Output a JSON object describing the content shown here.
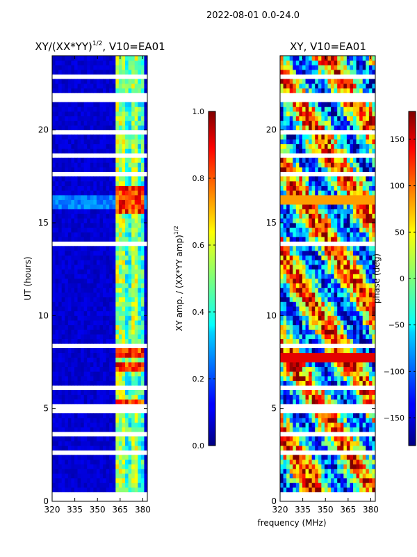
{
  "figure": {
    "suptitle": "2022-08-01 0.0-24.0",
    "shared_xlabel": "frequency (MHz)"
  },
  "chart_data": [
    {
      "type": "heatmap",
      "title": "XY/(XX*YY)",
      "title_exponent": "1/2",
      "title_suffix": ", V10=EA01",
      "xlabel": "",
      "ylabel": "UT (hours)",
      "xlim": [
        320,
        383
      ],
      "ylim": [
        0,
        24
      ],
      "xticks": [
        320,
        335,
        350,
        365,
        380
      ],
      "yticks": [
        0,
        5,
        10,
        15,
        20
      ],
      "colormap": "jet",
      "colorbar": {
        "label": "XY amp. / (XX*YY amp)",
        "label_exponent": "1/2",
        "range": [
          0.0,
          1.0
        ],
        "ticks": [
          "0.0",
          "0.2",
          "0.4",
          "0.6",
          "0.8",
          "1.0"
        ]
      },
      "flagged_hour_ranges": [
        [
          0.05,
          0.15
        ],
        [
          0.35,
          0.6
        ],
        [
          2.05,
          2.1
        ],
        [
          2.6,
          2.65
        ],
        [
          3.4,
          3.45
        ],
        [
          3.6,
          3.65
        ],
        [
          3.9,
          3.95
        ],
        [
          4.25,
          4.3
        ],
        [
          4.55,
          4.6
        ],
        [
          4.85,
          4.9
        ],
        [
          5.1,
          5.15
        ],
        [
          5.4,
          5.45
        ],
        [
          5.95,
          6.2
        ],
        [
          6.45,
          6.5
        ],
        [
          6.75,
          6.8
        ],
        [
          7.05,
          7.1
        ],
        [
          7.4,
          7.45
        ],
        [
          7.95,
          8.0
        ],
        [
          8.35,
          8.4
        ],
        [
          8.7,
          8.75
        ],
        [
          9.3,
          9.35
        ],
        [
          9.7,
          9.75
        ],
        [
          10.05,
          10.1
        ],
        [
          10.7,
          10.75
        ],
        [
          11.3,
          11.35
        ],
        [
          11.9,
          11.95
        ],
        [
          12.55,
          12.6
        ],
        [
          13.2,
          13.3
        ],
        [
          13.85,
          13.9
        ],
        [
          14.45,
          14.5
        ],
        [
          14.95,
          15.0
        ],
        [
          15.45,
          15.5
        ],
        [
          16.9,
          16.95
        ],
        [
          17.25,
          17.3
        ],
        [
          17.6,
          17.65
        ],
        [
          17.8,
          17.85
        ],
        [
          18.05,
          18.1
        ],
        [
          18.6,
          18.65
        ],
        [
          19.5,
          19.55
        ],
        [
          19.75,
          19.9
        ],
        [
          20.15,
          20.2
        ],
        [
          20.5,
          20.55
        ],
        [
          20.95,
          21.0
        ],
        [
          21.4,
          21.95
        ],
        [
          22.5,
          22.55
        ],
        [
          22.85,
          22.9
        ],
        [
          23.2,
          23.25
        ],
        [
          23.5,
          23.55
        ],
        [
          23.75,
          23.8
        ]
      ],
      "signal_freq_band_MHz": [
        363,
        381
      ],
      "bright_hour_bands": [
        [
          4.9,
          5.6
        ],
        [
          6.9,
          7.6
        ],
        [
          7.7,
          8.2
        ],
        [
          15.6,
          17.0
        ]
      ]
    },
    {
      "type": "heatmap",
      "title": "XY, V10=EA01",
      "xlabel": "frequency (MHz)",
      "ylabel": "",
      "xlim": [
        320,
        383
      ],
      "ylim": [
        0,
        24
      ],
      "xticks": [
        320,
        335,
        350,
        365,
        380
      ],
      "yticks": [
        0,
        5,
        10,
        15,
        20
      ],
      "colormap": "jet",
      "colorbar": {
        "label": "phase (deg)",
        "range": [
          -180,
          180
        ],
        "ticks": [
          "−150",
          "−100",
          "−50",
          "0",
          "50",
          "100",
          "150"
        ]
      },
      "flagged_hour_ranges": [
        [
          0.05,
          0.15
        ],
        [
          0.35,
          0.6
        ],
        [
          2.05,
          2.1
        ],
        [
          2.6,
          2.65
        ],
        [
          3.4,
          3.45
        ],
        [
          3.6,
          3.65
        ],
        [
          3.9,
          3.95
        ],
        [
          4.25,
          4.3
        ],
        [
          4.55,
          4.6
        ],
        [
          4.85,
          4.9
        ],
        [
          5.1,
          5.15
        ],
        [
          5.4,
          5.45
        ],
        [
          5.95,
          6.2
        ],
        [
          6.45,
          6.5
        ],
        [
          6.75,
          6.8
        ],
        [
          7.05,
          7.1
        ],
        [
          7.4,
          7.45
        ],
        [
          7.95,
          8.0
        ],
        [
          8.35,
          8.4
        ],
        [
          8.7,
          8.75
        ],
        [
          9.3,
          9.35
        ],
        [
          9.7,
          9.75
        ],
        [
          10.05,
          10.1
        ],
        [
          10.7,
          10.75
        ],
        [
          11.3,
          11.35
        ],
        [
          11.9,
          11.95
        ],
        [
          12.55,
          12.6
        ],
        [
          13.2,
          13.3
        ],
        [
          13.85,
          13.9
        ],
        [
          14.45,
          14.5
        ],
        [
          14.95,
          15.0
        ],
        [
          15.45,
          15.5
        ],
        [
          16.9,
          16.95
        ],
        [
          17.25,
          17.3
        ],
        [
          17.6,
          17.65
        ],
        [
          17.8,
          17.85
        ],
        [
          18.05,
          18.1
        ],
        [
          18.6,
          18.65
        ],
        [
          19.5,
          19.55
        ],
        [
          19.75,
          19.9
        ],
        [
          20.15,
          20.2
        ],
        [
          20.5,
          20.55
        ],
        [
          20.95,
          21.0
        ],
        [
          21.4,
          21.95
        ],
        [
          22.5,
          22.55
        ],
        [
          22.85,
          22.9
        ],
        [
          23.2,
          23.25
        ],
        [
          23.5,
          23.55
        ],
        [
          23.75,
          23.8
        ]
      ]
    }
  ]
}
